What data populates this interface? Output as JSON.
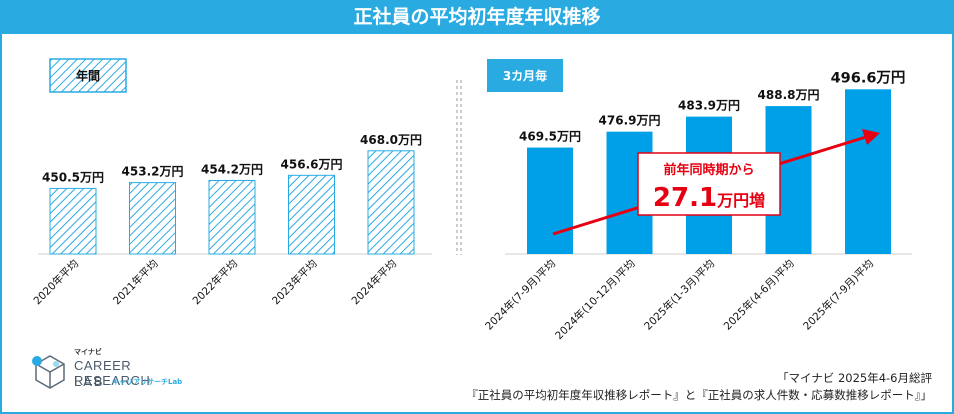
{
  "title": "正社員の平均初年度年収推移",
  "chart_data": [
    {
      "type": "bar",
      "panel_label": "年間",
      "categories": [
        "2020年平均",
        "2021年平均",
        "2022年平均",
        "2023年平均",
        "2024年平均"
      ],
      "values": [
        450.5,
        453.2,
        454.2,
        456.6,
        468.0
      ],
      "data_labels": [
        "450.5万円",
        "453.2万円",
        "454.2万円",
        "456.6万円",
        "468.0万円"
      ],
      "style": "hatched",
      "color": "#29abe2"
    },
    {
      "type": "bar",
      "panel_label": "3カ月毎",
      "categories": [
        "2024年(7-9月)平均",
        "2024年(10-12月)平均",
        "2025年(1-3月)平均",
        "2025年(4-6月)平均",
        "2025年(7-9月)平均"
      ],
      "values": [
        469.5,
        476.9,
        483.9,
        488.8,
        496.6
      ],
      "data_labels": [
        "469.5万円",
        "476.9万円",
        "483.9万円",
        "488.8万円",
        "496.6万円"
      ],
      "style": "solid",
      "color": "#00a0e9"
    }
  ],
  "annotation": {
    "line1": "前年同時期から",
    "value": "27.1",
    "unit": "万円増",
    "color": "#e60012"
  },
  "logo": {
    "top": "マイナビ",
    "main": "CAREER RESEARCH",
    "sub": "LAB",
    "jp": "キャリアリサーチLab"
  },
  "source": {
    "line1": "「マイナビ 2025年4-6月総評",
    "line2": "『正社員の平均初年度年収推移レポート』と『正社員の求人件数・応募数推移レポート』」"
  }
}
